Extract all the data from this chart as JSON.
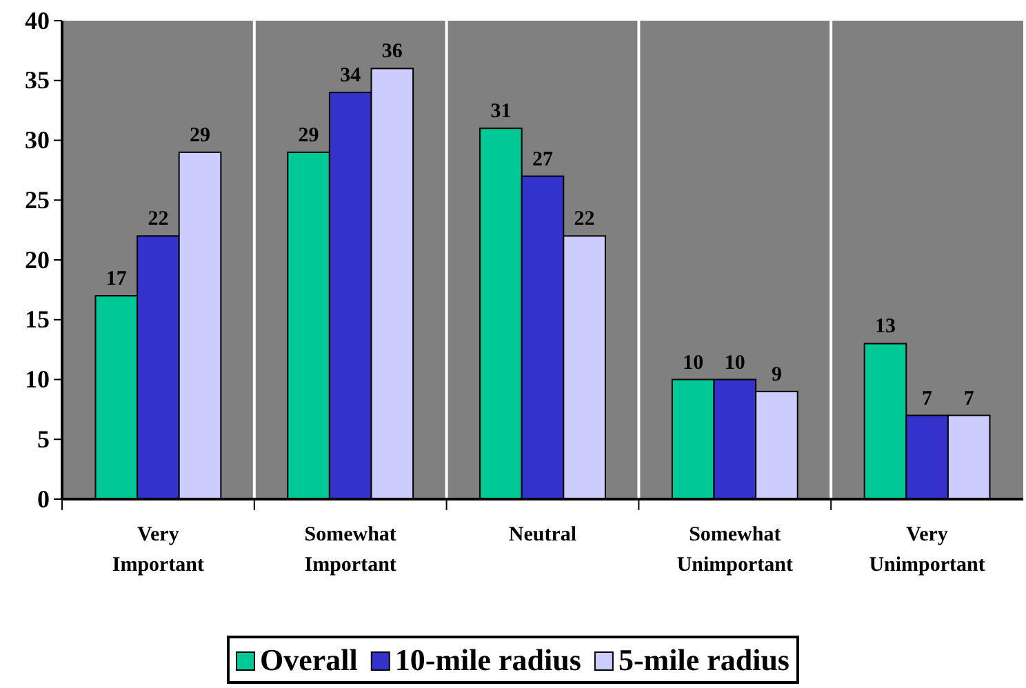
{
  "chart_data": {
    "type": "bar",
    "categories": [
      "Very Important",
      "Somewhat Important",
      "Neutral",
      "Somewhat Unimportant",
      "Very Unimportant"
    ],
    "series": [
      {
        "name": "Overall",
        "color": "#00c896",
        "values": [
          17,
          29,
          31,
          10,
          13
        ]
      },
      {
        "name": "10-mile radius",
        "color": "#3333cc",
        "values": [
          22,
          34,
          27,
          10,
          7
        ]
      },
      {
        "name": "5-mile radius",
        "color": "#ccccff",
        "values": [
          29,
          36,
          22,
          9,
          7
        ]
      }
    ],
    "ylim": [
      0,
      40
    ],
    "yticks": [
      0,
      5,
      10,
      15,
      20,
      25,
      30,
      35,
      40
    ],
    "grid": "x",
    "legend": "bottom",
    "data_labels": true
  }
}
